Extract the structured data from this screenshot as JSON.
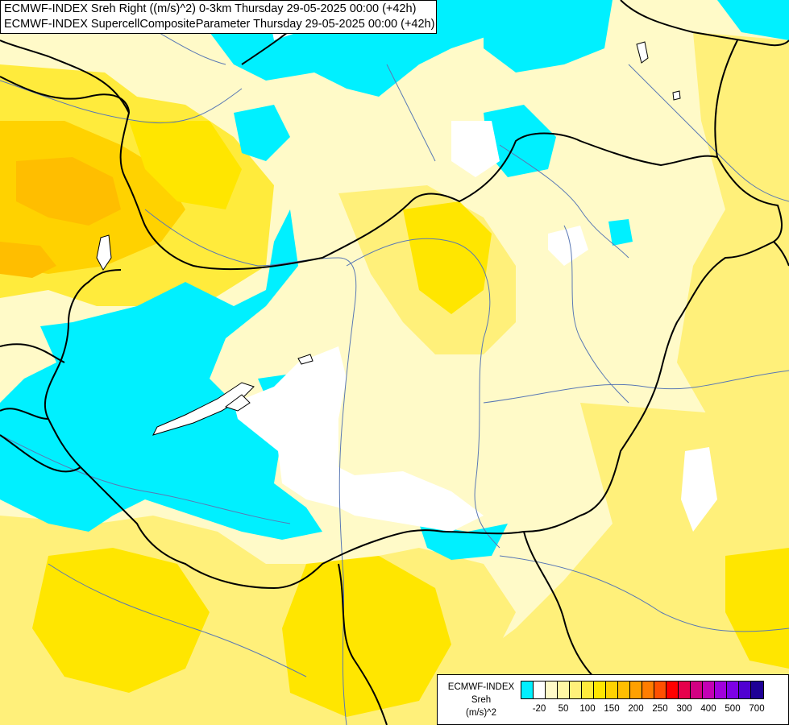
{
  "header": {
    "line1": "ECMWF-INDEX Sreh Right ((m/s)^2) 0-3km Thursday 29-05-2025 00:00 (+42h)",
    "line2": "ECMWF-INDEX SupercellCompositeParameter Thursday 29-05-2025 00:00 (+42h)"
  },
  "legend": {
    "model": "ECMWF-INDEX",
    "parameter": "Sreh",
    "unit": "(m/s)^2",
    "swatches": [
      "#00f0ff",
      "#ffffff",
      "#fffac8",
      "#fff7a5",
      "#fff07a",
      "#ffeb3c",
      "#ffe600",
      "#ffd200",
      "#ffbe00",
      "#ffa000",
      "#ff7d00",
      "#ff5000",
      "#ff0000",
      "#e6004b",
      "#d20082",
      "#c300b4",
      "#a000dc",
      "#7d00e6",
      "#5000d2",
      "#1e0096"
    ],
    "ticks": [
      "-20",
      "50",
      "100",
      "150",
      "200",
      "250",
      "300",
      "400",
      "500",
      "700"
    ]
  },
  "colors": {
    "cyan": "#00f0ff",
    "white": "#ffffff",
    "pale_yellow": "#fffac8",
    "light_yellow": "#fff38c",
    "yellow": "#ffe600",
    "gold": "#ffd200",
    "orange": "#ffbe00",
    "border": "#000000",
    "river": "#5a78b4"
  }
}
